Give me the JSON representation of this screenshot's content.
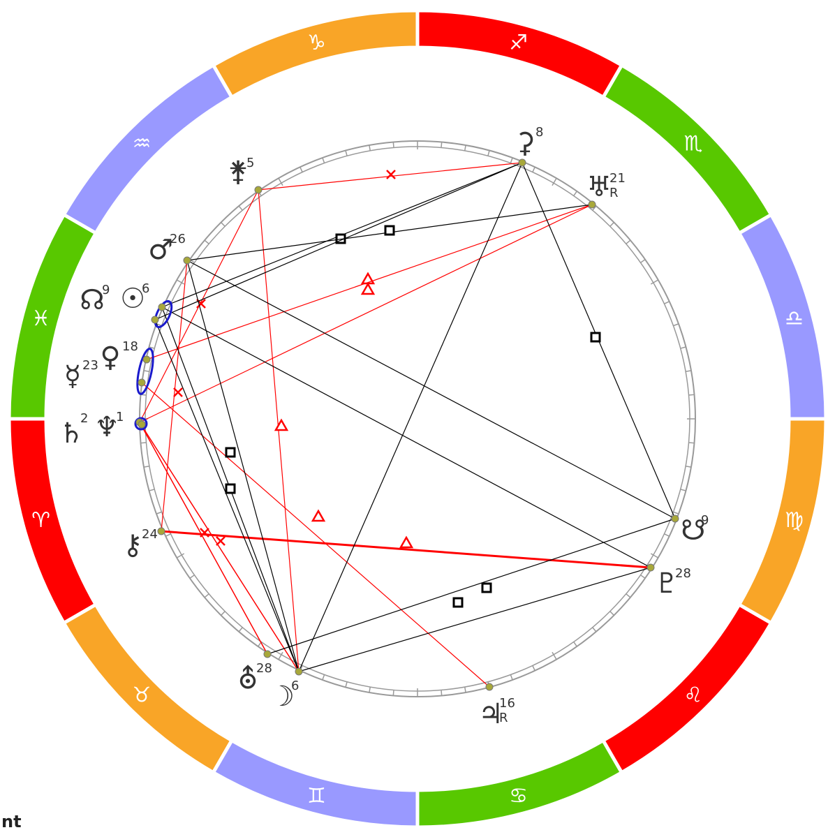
{
  "signs": [
    {
      "glyph": "♎",
      "color": "#9999ff"
    },
    {
      "glyph": "♏",
      "color": "#58c800"
    },
    {
      "glyph": "♐",
      "color": "#ff0000"
    },
    {
      "glyph": "♑",
      "color": "#f9a527"
    },
    {
      "glyph": "♒",
      "color": "#9999ff"
    },
    {
      "glyph": "♓",
      "color": "#58c800"
    },
    {
      "glyph": "♈",
      "color": "#ff0000"
    },
    {
      "glyph": "♉",
      "color": "#f9a527"
    },
    {
      "glyph": "♊",
      "color": "#9999ff"
    },
    {
      "glyph": "♋",
      "color": "#58c800"
    },
    {
      "glyph": "♌",
      "color": "#ff0000"
    },
    {
      "glyph": "♍",
      "color": "#f9a527"
    }
  ],
  "planets": [
    {
      "glyph": "⚳",
      "degree": 8
    },
    {
      "glyph": "♅",
      "degree": 21,
      "retrograde": "R"
    },
    {
      "glyph": "⚵",
      "degree": 5
    },
    {
      "glyph": "♂",
      "degree": 26
    },
    {
      "glyph": "☊",
      "degree": 9
    },
    {
      "glyph": "☉",
      "degree": 6
    },
    {
      "glyph": "☿",
      "degree": 23
    },
    {
      "glyph": "♀",
      "degree": 18
    },
    {
      "glyph": "♄",
      "degree": 2
    },
    {
      "glyph": "♆",
      "degree": 1
    },
    {
      "glyph": "⚷",
      "degree": 24
    },
    {
      "glyph": "☋",
      "degree": 9
    },
    {
      "glyph": "♇",
      "degree": 28
    },
    {
      "glyph": "⛢",
      "degree": 28
    },
    {
      "glyph": "☽",
      "degree": 6
    },
    {
      "glyph": "♃",
      "degree": 16,
      "retrograde": "R"
    }
  ],
  "footer": "nt"
}
